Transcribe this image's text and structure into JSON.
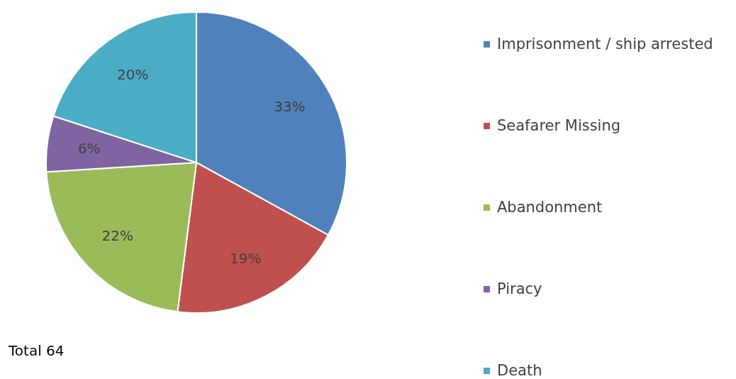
{
  "chart_data": {
    "type": "pie",
    "categories": [
      "Imprisonment / ship arrested",
      "Seafarer Missing",
      "Abandonment",
      "Piracy",
      "Death"
    ],
    "values": [
      33,
      19,
      22,
      6,
      20
    ],
    "colors": [
      "#4f81bd",
      "#c0504d",
      "#9bbb59",
      "#8064a2",
      "#4bacc6"
    ],
    "value_labels": [
      "33%",
      "19%",
      "22%",
      "6%",
      "20%"
    ],
    "annotations": [
      "Total 64"
    ],
    "legend": "right"
  }
}
